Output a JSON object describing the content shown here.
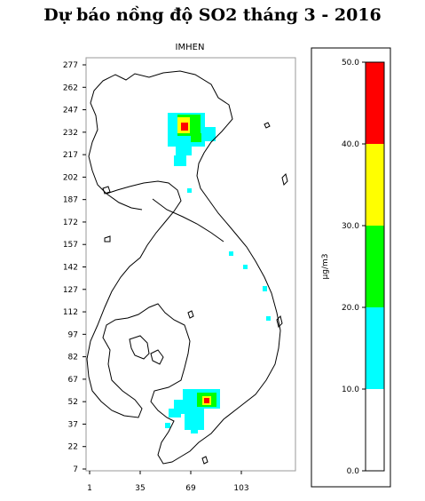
{
  "title": "Dự báo nồng độ SO2 tháng 3 - 2016",
  "panel_title": "IMHEN",
  "map": {
    "x_ticks": [
      "1",
      "35",
      "69",
      "103"
    ],
    "y_ticks": [
      "277",
      "262",
      "247",
      "232",
      "217",
      "202",
      "187",
      "172",
      "157",
      "142",
      "127",
      "112",
      "97",
      "82",
      "67",
      "52",
      "37",
      "22",
      "7"
    ],
    "x_range": [
      1,
      137
    ],
    "y_range": [
      7,
      277
    ]
  },
  "legend": {
    "unit_label": "µg/m3",
    "tick_labels": [
      "50.0",
      "40.0",
      "30.0",
      "20.0",
      "10.0",
      "0.0"
    ],
    "bins": [
      {
        "from": 0,
        "to": 10,
        "color": "#ffffff"
      },
      {
        "from": 10,
        "to": 20,
        "color": "#00ffff"
      },
      {
        "from": 20,
        "to": 30,
        "color": "#00ff00"
      },
      {
        "from": 30,
        "to": 40,
        "color": "#ffff00"
      },
      {
        "from": 40,
        "to": 50,
        "color": "#ff0000"
      }
    ]
  },
  "colors": {
    "cyan": "#00ffff",
    "green": "#00ff00",
    "yellow": "#ffff00",
    "red": "#ff0000"
  }
}
